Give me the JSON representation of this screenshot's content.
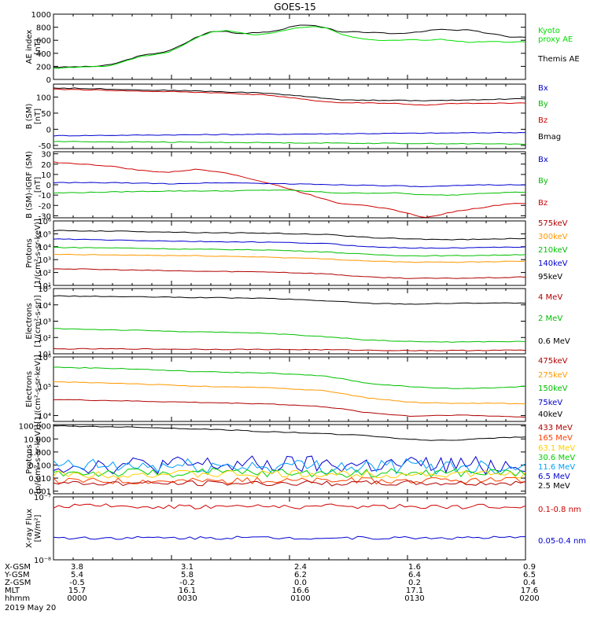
{
  "title": "GOES-15",
  "panels": [
    {
      "id": "ae",
      "ylabel": "AE index\n[nT]",
      "scale": "linear",
      "ylim": [
        0,
        1000
      ],
      "ticks": [
        {
          "v": 0,
          "t": "0"
        },
        {
          "v": 200,
          "t": "200"
        },
        {
          "v": 400,
          "t": "400"
        },
        {
          "v": 600,
          "t": "600"
        },
        {
          "v": 800,
          "t": "800"
        },
        {
          "v": 1000,
          "t": "1000"
        }
      ],
      "legend": [
        {
          "label": "Kyoto\nproxy AE",
          "color": "#00e000"
        },
        {
          "label": "Themis AE",
          "color": "#000000"
        }
      ],
      "series": [
        {
          "name": "Themis AE",
          "color": "#000000",
          "x": [
            0,
            2,
            4,
            6,
            8,
            10,
            12,
            14,
            16,
            18,
            20,
            22,
            24,
            26,
            28,
            30,
            32,
            34,
            36,
            38,
            40,
            42,
            44,
            46,
            48,
            50,
            52,
            54,
            56,
            58,
            60,
            62,
            64,
            66
          ],
          "y": [
            185,
            190,
            195,
            200,
            225,
            290,
            360,
            395,
            430,
            530,
            650,
            730,
            740,
            700,
            720,
            720,
            770,
            830,
            830,
            800,
            720,
            730,
            720,
            710,
            700,
            720,
            740,
            770,
            750,
            760,
            720,
            690,
            640,
            650
          ]
        },
        {
          "name": "Kyoto proxy AE",
          "color": "#00e000",
          "x": [
            0,
            2,
            4,
            6,
            8,
            10,
            12,
            14,
            16,
            18,
            20,
            22,
            24,
            26,
            28,
            30,
            32,
            34,
            36,
            38,
            40,
            42,
            44,
            46,
            48,
            50,
            52,
            54,
            56,
            58,
            60,
            62,
            64,
            66
          ],
          "y": [
            170,
            180,
            190,
            195,
            210,
            280,
            350,
            380,
            410,
            520,
            640,
            720,
            750,
            720,
            680,
            700,
            740,
            790,
            810,
            790,
            700,
            640,
            610,
            600,
            600,
            610,
            600,
            620,
            590,
            570,
            580,
            580,
            570,
            580
          ]
        }
      ]
    },
    {
      "id": "bsm",
      "ylabel": "B (SM)\n[nT]",
      "scale": "linear",
      "ylim": [
        -60,
        140
      ],
      "ticks": [
        {
          "v": -50,
          "t": "-50"
        },
        {
          "v": 0,
          "t": "0"
        },
        {
          "v": 50,
          "t": "50"
        },
        {
          "v": 100,
          "t": "100"
        },
        {
          "v": 150,
          "t": "150"
        }
      ],
      "legend": [
        {
          "label": "Bx",
          "color": "#0000d0"
        },
        {
          "label": "By",
          "color": "#00c000"
        },
        {
          "label": "Bz",
          "color": "#d00000"
        },
        {
          "label": "Bmag",
          "color": "#000000"
        }
      ],
      "series": [
        {
          "name": "Bmag",
          "color": "#000000",
          "x": [
            0,
            6,
            12,
            18,
            24,
            30,
            36,
            40,
            44,
            48,
            52,
            56,
            60,
            66
          ],
          "y": [
            128,
            126,
            122,
            120,
            116,
            112,
            100,
            92,
            90,
            90,
            88,
            90,
            92,
            95
          ]
        },
        {
          "name": "Bz",
          "color": "#d00000",
          "x": [
            0,
            6,
            12,
            18,
            24,
            30,
            36,
            40,
            44,
            48,
            52,
            56,
            60,
            66
          ],
          "y": [
            124,
            122,
            118,
            116,
            112,
            106,
            90,
            82,
            82,
            80,
            74,
            80,
            80,
            82
          ]
        },
        {
          "name": "Bx",
          "color": "#0000d0",
          "x": [
            0,
            66
          ],
          "y": [
            -20,
            -10
          ]
        },
        {
          "name": "By",
          "color": "#00c000",
          "x": [
            0,
            66
          ],
          "y": [
            -38,
            -46
          ]
        }
      ]
    },
    {
      "id": "bsmigrf",
      "ylabel": "B (SM)-IGRF (SM)\n[nT]",
      "scale": "linear",
      "ylim": [
        -32,
        32
      ],
      "ticks": [
        {
          "v": -30,
          "t": "-30"
        },
        {
          "v": -20,
          "t": "-20"
        },
        {
          "v": -10,
          "t": "-10"
        },
        {
          "v": 0,
          "t": "0"
        },
        {
          "v": 10,
          "t": "10"
        },
        {
          "v": 20,
          "t": "20"
        },
        {
          "v": 30,
          "t": "30"
        }
      ],
      "legend": [
        {
          "label": "Bx",
          "color": "#0000d0"
        },
        {
          "label": "By",
          "color": "#00c000"
        },
        {
          "label": "Bz",
          "color": "#d00000"
        }
      ],
      "series": [
        {
          "name": "Bz",
          "color": "#d00000",
          "x": [
            0,
            4,
            8,
            12,
            16,
            20,
            24,
            28,
            32,
            36,
            40,
            44,
            48,
            52,
            56,
            60,
            64,
            66
          ],
          "y": [
            22,
            20,
            18,
            14,
            12,
            15,
            12,
            5,
            -2,
            -10,
            -18,
            -20,
            -25,
            -32,
            -26,
            -22,
            -18,
            -18
          ]
        },
        {
          "name": "Bx",
          "color": "#0000d0",
          "x": [
            0,
            8,
            16,
            24,
            32,
            40,
            48,
            52,
            56,
            60,
            66
          ],
          "y": [
            2,
            2,
            1,
            2,
            1,
            0,
            -1,
            -2,
            -1,
            0,
            0
          ]
        },
        {
          "name": "By",
          "color": "#00c000",
          "x": [
            0,
            8,
            16,
            24,
            32,
            40,
            48,
            52,
            56,
            60,
            66
          ],
          "y": [
            -8,
            -7,
            -6,
            -6,
            -5,
            -8,
            -8,
            -10,
            -10,
            -8,
            -7
          ]
        }
      ]
    },
    {
      "id": "protons1",
      "ylabel": "Protons\n[1/(cm²-s-sr-keV)]",
      "scale": "log",
      "ylim": [
        1,
        6
      ],
      "ticks": [
        {
          "v": 1,
          "t": "10¹"
        },
        {
          "v": 2,
          "t": "10²"
        },
        {
          "v": 3,
          "t": "10³"
        },
        {
          "v": 4,
          "t": "10⁴"
        },
        {
          "v": 5,
          "t": "10⁵"
        },
        {
          "v": 6,
          "t": "10⁶"
        }
      ],
      "legend": [
        {
          "label": "575keV",
          "color": "#b00000"
        },
        {
          "label": "300keV",
          "color": "#ff9900"
        },
        {
          "label": "210keV",
          "color": "#00c000"
        },
        {
          "label": "140keV",
          "color": "#0000d0"
        },
        {
          "label": "95keV",
          "color": "#000000"
        }
      ],
      "series": [
        {
          "name": "95keV",
          "color": "#000000",
          "x": [
            0,
            10,
            20,
            30,
            38,
            44,
            50,
            56,
            62,
            66
          ],
          "y": [
            5.25,
            5.2,
            5.1,
            5.05,
            4.95,
            4.72,
            4.6,
            4.55,
            4.6,
            4.65
          ]
        },
        {
          "name": "140keV",
          "color": "#0000d0",
          "x": [
            0,
            10,
            20,
            30,
            38,
            44,
            50,
            56,
            62,
            66
          ],
          "y": [
            4.6,
            4.5,
            4.4,
            4.35,
            4.25,
            4.0,
            3.9,
            3.9,
            3.95,
            4.0
          ]
        },
        {
          "name": "210keV",
          "color": "#00c000",
          "x": [
            0,
            10,
            20,
            30,
            38,
            44,
            50,
            56,
            62,
            66
          ],
          "y": [
            3.95,
            3.9,
            3.8,
            3.75,
            3.6,
            3.4,
            3.3,
            3.3,
            3.35,
            3.4
          ]
        },
        {
          "name": "300keV",
          "color": "#ff9900",
          "x": [
            0,
            10,
            20,
            30,
            38,
            44,
            50,
            56,
            62,
            66
          ],
          "y": [
            3.4,
            3.35,
            3.3,
            3.2,
            3.05,
            2.9,
            2.8,
            2.8,
            2.85,
            2.9
          ]
        },
        {
          "name": "575keV",
          "color": "#b00000",
          "x": [
            0,
            10,
            20,
            30,
            38,
            44,
            50,
            56,
            62,
            66
          ],
          "y": [
            2.3,
            2.2,
            2.1,
            2.05,
            1.9,
            1.65,
            1.55,
            1.55,
            1.6,
            1.65
          ]
        }
      ]
    },
    {
      "id": "electrons1",
      "ylabel": "Electrons\n[1/(cm²-s-sr)]",
      "scale": "log",
      "ylim": [
        1,
        5
      ],
      "ticks": [
        {
          "v": 1,
          "t": "10¹"
        },
        {
          "v": 2,
          "t": "10²"
        },
        {
          "v": 3,
          "t": "10³"
        },
        {
          "v": 4,
          "t": "10⁴"
        },
        {
          "v": 5,
          "t": "10⁵"
        }
      ],
      "legend": [
        {
          "label": "4 MeV",
          "color": "#b00000"
        },
        {
          "label": "2 MeV",
          "color": "#00c000"
        },
        {
          "label": "0.6 MeV",
          "color": "#000000"
        }
      ],
      "series": [
        {
          "name": "0.6 MeV",
          "color": "#000000",
          "x": [
            0,
            10,
            20,
            30,
            38,
            44,
            50,
            56,
            62,
            66
          ],
          "y": [
            4.55,
            4.5,
            4.45,
            4.4,
            4.25,
            4.1,
            4.05,
            4.1,
            4.12,
            4.1
          ]
        },
        {
          "name": "2 MeV",
          "color": "#00c000",
          "x": [
            0,
            10,
            20,
            30,
            38,
            44,
            50,
            56,
            62,
            66
          ],
          "y": [
            2.55,
            2.45,
            2.35,
            2.25,
            2.05,
            1.85,
            1.75,
            1.72,
            1.75,
            1.75
          ]
        },
        {
          "name": "4 MeV",
          "color": "#b00000",
          "x": [
            0,
            10,
            20,
            30,
            38,
            44,
            50,
            56,
            62,
            66
          ],
          "y": [
            1.3,
            1.3,
            1.28,
            1.27,
            1.25,
            1.22,
            1.2,
            1.2,
            1.22,
            1.22
          ]
        }
      ]
    },
    {
      "id": "electrons2",
      "ylabel": "Electrons\n[1/(cm²-s-sr-keV)]",
      "scale": "log",
      "ylim": [
        3.8,
        6
      ],
      "ticks": [
        {
          "v": 4,
          "t": "10⁴"
        },
        {
          "v": 5,
          "t": "10⁵"
        },
        {
          "v": 6,
          "t": "10⁶"
        }
      ],
      "legend": [
        {
          "label": "475keV",
          "color": "#b00000"
        },
        {
          "label": "275keV",
          "color": "#ff9900"
        },
        {
          "label": "150keV",
          "color": "#00c000"
        },
        {
          "label": "75keV",
          "color": "#0000d0"
        },
        {
          "label": "40keV",
          "color": "#000000"
        }
      ],
      "series": [
        {
          "name": "150keV",
          "color": "#00c000",
          "x": [
            0,
            10,
            20,
            30,
            38,
            44,
            50,
            56,
            62,
            66
          ],
          "y": [
            5.65,
            5.6,
            5.5,
            5.45,
            5.35,
            5.1,
            4.98,
            4.92,
            4.95,
            5.0
          ]
        },
        {
          "name": "275keV",
          "color": "#ff9900",
          "x": [
            0,
            10,
            20,
            30,
            38,
            44,
            50,
            56,
            62,
            66
          ],
          "y": [
            5.15,
            5.1,
            5.0,
            4.95,
            4.85,
            4.6,
            4.45,
            4.42,
            4.42,
            4.4
          ]
        },
        {
          "name": "475keV",
          "color": "#b00000",
          "x": [
            0,
            10,
            20,
            30,
            38,
            44,
            50,
            56,
            62,
            66
          ],
          "y": [
            4.55,
            4.5,
            4.45,
            4.4,
            4.3,
            4.1,
            3.98,
            4.02,
            3.98,
            3.95
          ]
        }
      ]
    },
    {
      "id": "protons2",
      "ylabel": "Protons\n[p/(cm²-s-sr-keV)]",
      "scale": "log",
      "ylim": [
        -3.2,
        2.1
      ],
      "ticks": [
        {
          "v": -3,
          "t": "0.001"
        },
        {
          "v": -2,
          "t": "0.010"
        },
        {
          "v": -1,
          "t": "0.100"
        },
        {
          "v": 0,
          "t": "1.000"
        },
        {
          "v": 1,
          "t": "10.000"
        },
        {
          "v": 2,
          "t": "100.000"
        }
      ],
      "legend": [
        {
          "label": "433 MeV",
          "color": "#b00000"
        },
        {
          "label": "165 MeV",
          "color": "#ff4000"
        },
        {
          "label": "63.1 MeV",
          "color": "#ffd000"
        },
        {
          "label": "30.6 MeV",
          "color": "#00d000"
        },
        {
          "label": "11.6 MeV",
          "color": "#00a0ff"
        },
        {
          "label": "6.5 MeV",
          "color": "#0000d0"
        },
        {
          "label": "2.5 MeV",
          "color": "#000000"
        }
      ],
      "series": [
        {
          "name": "2.5 MeV",
          "color": "#000000",
          "x": [
            0,
            6,
            12,
            18,
            24,
            30,
            36,
            40,
            44,
            48,
            52,
            56,
            60,
            66
          ],
          "y": [
            2.0,
            1.95,
            1.9,
            1.8,
            1.7,
            1.55,
            1.45,
            1.35,
            1.25,
            1.05,
            0.9,
            0.9,
            1.05,
            1.15
          ]
        }
      ]
    },
    {
      "id": "xray",
      "ylabel": "X-ray Flux\n[W/m²]",
      "scale": "log",
      "ylim": [
        -8,
        -7
      ],
      "ticks": [
        {
          "v": -8,
          "t": "10⁻⁸"
        },
        {
          "v": -7,
          "t": "10⁻⁷"
        }
      ],
      "legend": [
        {
          "label": "0.1-0.8 nm",
          "color": "#d00000"
        },
        {
          "label": "0.05-0.4 nm",
          "color": "#0000d0"
        }
      ],
      "series": []
    }
  ],
  "chart_data": {
    "type": "line",
    "title": "GOES-15",
    "x_axis": {
      "ticks": [
        "0000",
        "0030",
        "0100",
        "0130",
        "0200"
      ],
      "rows": [
        {
          "label": "X-GSM",
          "values": [
            "3.8",
            "3.1",
            "2.4",
            "1.6",
            "0.9"
          ]
        },
        {
          "label": "Y-GSM",
          "values": [
            "5.4",
            "5.8",
            "6.2",
            "6.4",
            "6.5"
          ]
        },
        {
          "label": "Z-GSM",
          "values": [
            "-0.5",
            "-0.2",
            "0.0",
            "0.2",
            "0.4"
          ]
        },
        {
          "label": "MLT",
          "values": [
            "15.7",
            "16.1",
            "16.6",
            "17.1",
            "17.6"
          ]
        },
        {
          "label": "hhmm",
          "values": [
            "0000",
            "0030",
            "0100",
            "0130",
            "0200"
          ]
        }
      ],
      "date": "2019 May 20"
    }
  }
}
